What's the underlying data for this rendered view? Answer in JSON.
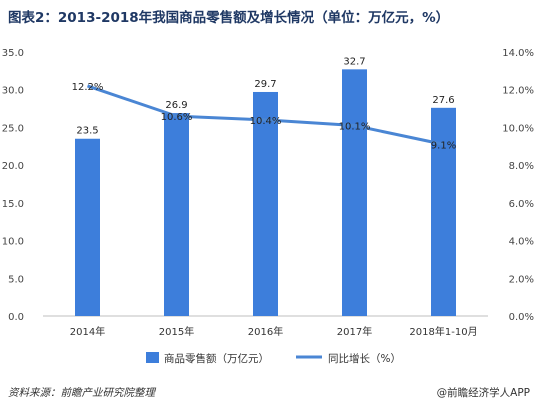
{
  "title": "图表2：2013-2018年我国商品零售额及增长情况（单位：万亿元，%）",
  "source": "资料来源：前瞻产业研究院整理",
  "watermark": "@前瞻经济学人APP",
  "colors": {
    "bar": "#3d7edb",
    "line": "#4a86d4"
  },
  "chart_data": {
    "type": "bar+line",
    "categories": [
      "2014年",
      "2015年",
      "2016年",
      "2017年",
      "2018年1-10月"
    ],
    "series": [
      {
        "name": "商品零售额（万亿元）",
        "type": "bar",
        "axis": "left",
        "values": [
          23.5,
          26.9,
          29.7,
          32.7,
          27.6
        ]
      },
      {
        "name": "同比增长（%）",
        "type": "line",
        "axis": "right",
        "values": [
          12.2,
          10.6,
          10.4,
          10.1,
          9.1
        ]
      }
    ],
    "y_left": {
      "min": 0,
      "max": 35,
      "step": 5,
      "ticks": [
        "0.0",
        "5.0",
        "10.0",
        "15.0",
        "20.0",
        "25.0",
        "30.0",
        "35.0"
      ]
    },
    "y_right": {
      "min": 0,
      "max": 14,
      "step": 2,
      "ticks": [
        "0.0%",
        "2.0%",
        "4.0%",
        "6.0%",
        "8.0%",
        "10.0%",
        "12.0%",
        "14.0%"
      ]
    },
    "bar_labels": [
      "23.5",
      "26.9",
      "29.7",
      "32.7",
      "27.6"
    ],
    "line_labels": [
      "12.2%",
      "10.6%",
      "10.4%",
      "10.1%",
      "9.1%"
    ],
    "grid": false,
    "legend_position": "bottom"
  }
}
